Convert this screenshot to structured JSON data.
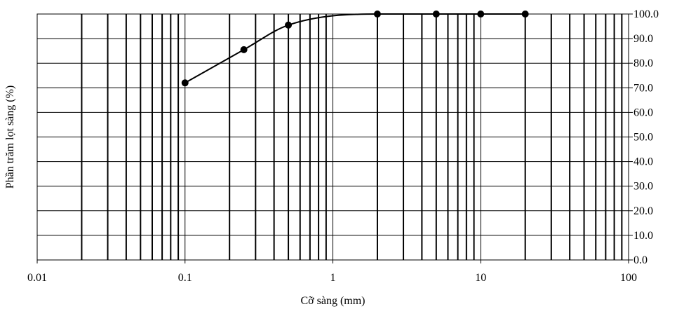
{
  "chart_data": {
    "type": "line",
    "title": "",
    "xlabel": "Cỡ sàng  (mm)",
    "ylabel": "Phần trăm lọt sàng (%)",
    "x_scale": "log",
    "xlim": [
      0.01,
      100
    ],
    "ylim": [
      0,
      100
    ],
    "y_axis_position": "right",
    "grid": true,
    "x_tick_labels": [
      "0.01",
      "0.1",
      "1",
      "10",
      "100"
    ],
    "y_tick_labels": [
      "0.0",
      "10.0",
      "20.0",
      "30.0",
      "40.0",
      "50.0",
      "60.0",
      "70.0",
      "80.0",
      "90.0",
      "100.0"
    ],
    "series": [
      {
        "x": [
          0.1,
          0.25,
          0.5,
          2,
          5,
          10,
          20
        ],
        "y": [
          72.0,
          85.5,
          95.5,
          100.0,
          100.0,
          100.0,
          100.0
        ]
      }
    ],
    "colors": {
      "line": "#000000",
      "grid": "#000000"
    }
  }
}
